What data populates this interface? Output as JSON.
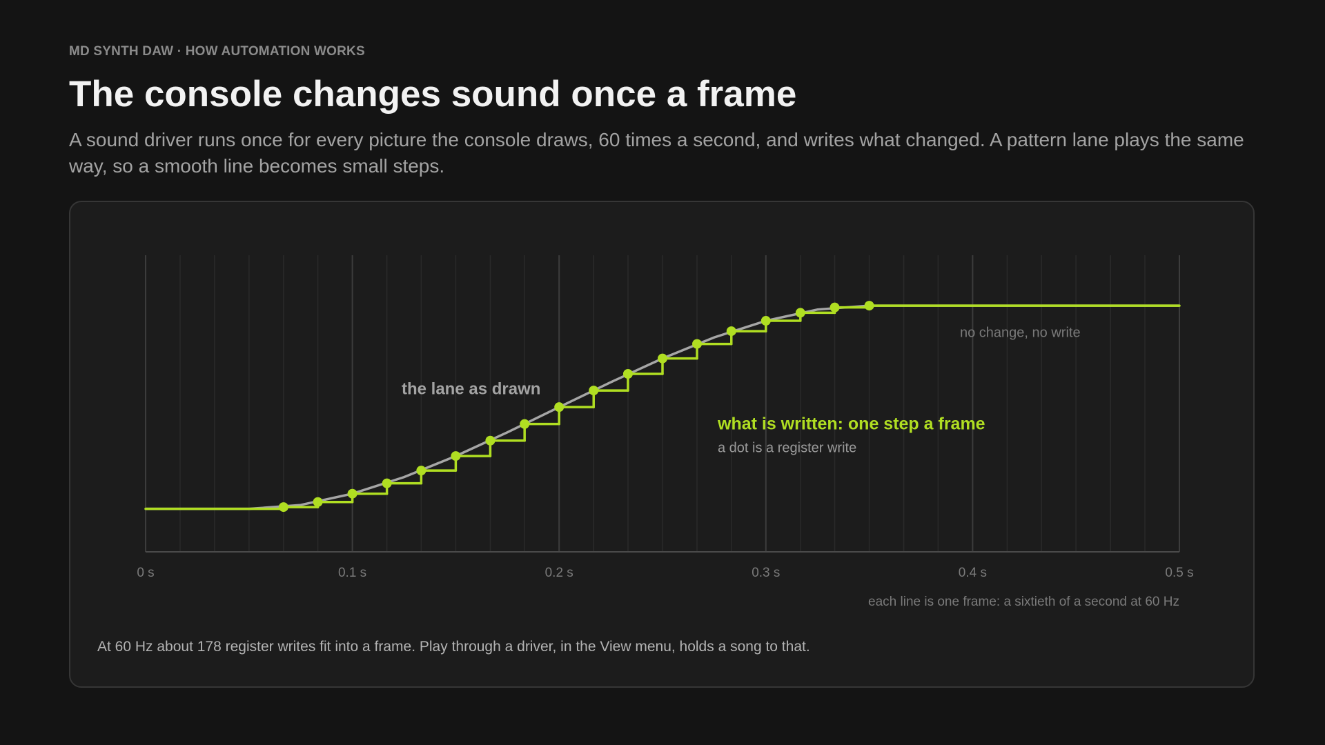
{
  "header": {
    "eyebrow": "MD SYNTH DAW · HOW AUTOMATION WORKS",
    "title": "The console changes sound once a frame",
    "subtitle": "A sound driver runs once for every picture the console draws, 60 times a second, and writes what changed. A pattern lane plays the same way, so a smooth line becomes small steps."
  },
  "chart_data": {
    "type": "line",
    "xlim": [
      0,
      0.5
    ],
    "ylim": [
      0,
      1
    ],
    "xticks": [
      {
        "value": 0,
        "label": "0 s"
      },
      {
        "value": 0.1,
        "label": "0.1 s"
      },
      {
        "value": 0.2,
        "label": "0.2 s"
      },
      {
        "value": 0.3,
        "label": "0.3 s"
      },
      {
        "value": 0.4,
        "label": "0.4 s"
      },
      {
        "value": 0.5,
        "label": "0.5 s"
      }
    ],
    "xminorticks": [
      0.0167,
      0.0333,
      0.05,
      0.0667,
      0.0833,
      0.1167,
      0.1333,
      0.15,
      0.1667,
      0.1833,
      0.2167,
      0.2333,
      0.25,
      0.2667,
      0.2833,
      0.3167,
      0.3333,
      0.35,
      0.3667,
      0.3833,
      0.4167,
      0.4333,
      0.45,
      0.4667,
      0.4833
    ],
    "grid": true,
    "series": [
      {
        "name": "the lane as drawn",
        "color": "#a6a6a6",
        "x": [
          0,
          0.025,
          0.05,
          0.075,
          0.1,
          0.125,
          0.15,
          0.175,
          0.2,
          0.225,
          0.25,
          0.275,
          0.3,
          0.325,
          0.35,
          0.375,
          0.4,
          0.425,
          0.45,
          0.475,
          0.5
        ],
        "values": [
          0.145,
          0.145,
          0.145,
          0.158,
          0.196,
          0.252,
          0.323,
          0.403,
          0.488,
          0.572,
          0.652,
          0.723,
          0.779,
          0.817,
          0.83,
          0.83,
          0.83,
          0.83,
          0.83,
          0.83,
          0.83
        ]
      },
      {
        "name": "what is written: one step a frame",
        "color": "#b0de22",
        "step": true,
        "x": [
          0,
          0.0667,
          0.0833,
          0.1,
          0.1167,
          0.1333,
          0.15,
          0.1667,
          0.1833,
          0.2,
          0.2167,
          0.2333,
          0.25,
          0.2667,
          0.2833,
          0.3,
          0.3167,
          0.3333,
          0.35,
          0.5
        ],
        "values": [
          0.145,
          0.151,
          0.168,
          0.196,
          0.231,
          0.274,
          0.323,
          0.375,
          0.431,
          0.488,
          0.544,
          0.6,
          0.652,
          0.701,
          0.744,
          0.779,
          0.806,
          0.824,
          0.83,
          0.83
        ]
      }
    ],
    "annotations": [
      "a dot is a register write",
      "no change, no write"
    ],
    "x_note": "each line is one frame: a sixtieth of a second at 60 Hz"
  },
  "footer": "At 60 Hz about 178 register writes fit into a frame. Play through a driver, in the View menu, holds a song to that."
}
